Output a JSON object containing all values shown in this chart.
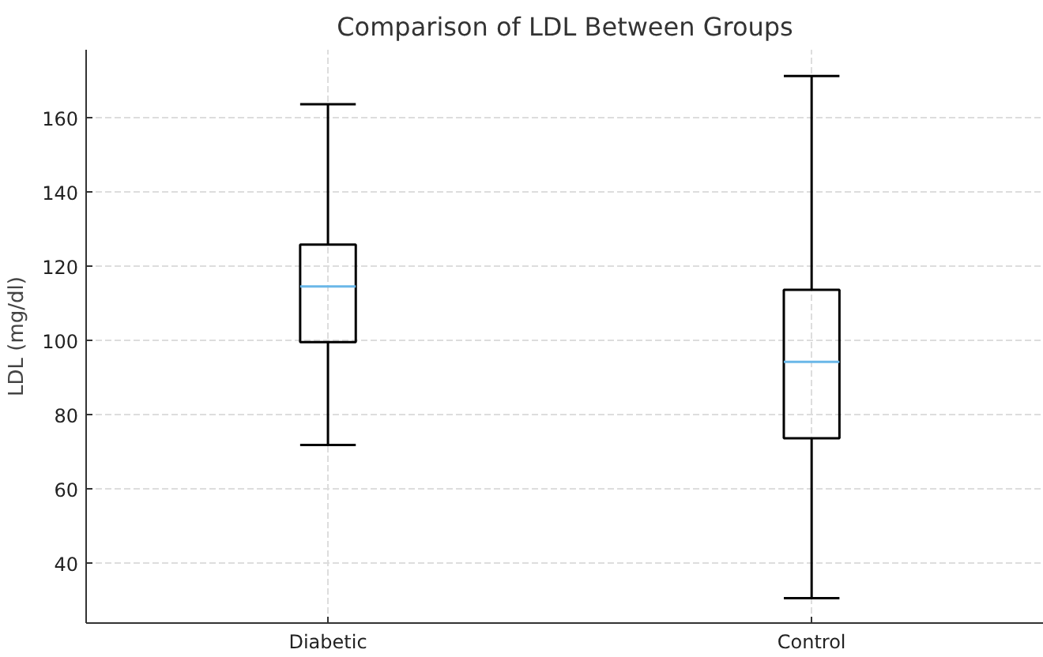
{
  "chart_data": {
    "type": "box",
    "title": "Comparison of LDL Between Groups",
    "ylabel": "LDL (mg/dl)",
    "categories": [
      "Diabetic",
      "Control"
    ],
    "boxes": [
      {
        "low": 72,
        "q1": 99.7,
        "median": 114.7,
        "q3": 126,
        "high": 163.8
      },
      {
        "low": 30.7,
        "q1": 73.8,
        "median": 94.4,
        "q3": 113.8,
        "high": 171.4
      }
    ],
    "color": "#000000",
    "ylim": [
      24,
      178.5
    ],
    "yticks": [
      40,
      60,
      80,
      100,
      120,
      140,
      160
    ],
    "grid": true
  }
}
